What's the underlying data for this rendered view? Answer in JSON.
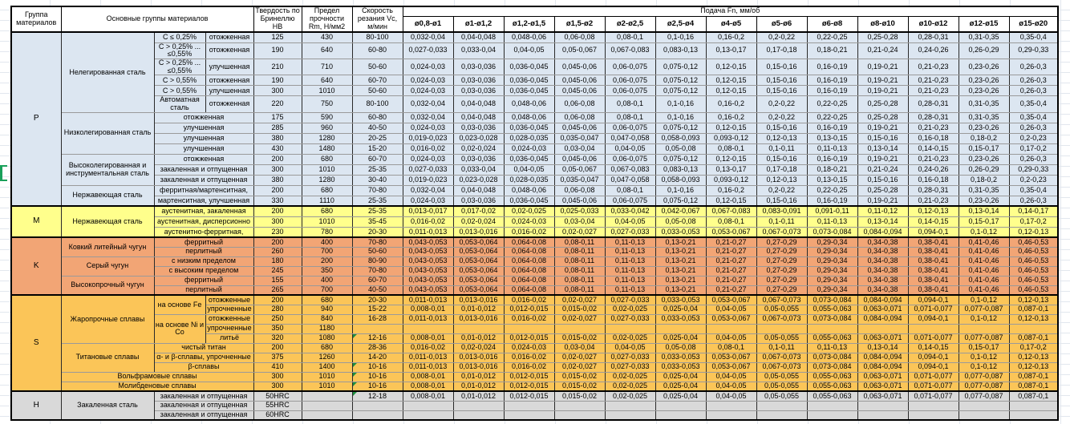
{
  "sheet": {
    "header": {
      "group_col": "Группа материалов",
      "main_col": "Основные группы материалов",
      "hardness_col": "Твердость по Бринеллю HB",
      "strength_col": "Предел прочности Rm, Н/мм2",
      "speed_col": "Скорость резания Vc, м/мин",
      "feed_title": "Подача Fn, мм/об",
      "diameters": [
        "ø0,8-ø1",
        "ø1-ø1,2",
        "ø1,2-ø1,5",
        "ø1,5-ø2",
        "ø2-ø2,5",
        "ø2,5-ø4",
        "ø4-ø5",
        "ø5-ø6",
        "ø6-ø8",
        "ø8-ø10",
        "ø10-ø12",
        "ø12-ø15",
        "ø15-ø20"
      ]
    },
    "feed_patterns": {
      "A": [
        "0,032-0,04",
        "0,04-0,048",
        "0,048-0,06",
        "0,06-0,08",
        "0,08-0,1",
        "0,1-0,16",
        "0,16-0,2",
        "0,2-0,22",
        "0,22-0,25",
        "0,25-0,28",
        "0,28-0,31",
        "0,31-0,35",
        "0,35-0,4"
      ],
      "B": [
        "0,027-0,033",
        "0,033-0,04",
        "0,04-0,05",
        "0,05-0,067",
        "0,067-0,083",
        "0,083-0,13",
        "0,13-0,17",
        "0,17-0,18",
        "0,18-0,21",
        "0,21-0,24",
        "0,24-0,26",
        "0,26-0,29",
        "0,29-0,33"
      ],
      "C": [
        "0,024-0,03",
        "0,03-0,036",
        "0,036-0,045",
        "0,045-0,06",
        "0,06-0,075",
        "0,075-0,12",
        "0,12-0,15",
        "0,15-0,16",
        "0,16-0,19",
        "0,19-0,21",
        "0,21-0,23",
        "0,23-0,26",
        "0,26-0,3"
      ],
      "D": [
        "0,019-0,023",
        "0,023-0,028",
        "0,028-0,035",
        "0,035-0,047",
        "0,047-0,058",
        "0,058-0,093",
        "0,093-0,12",
        "0,12-0,13",
        "0,13-0,15",
        "0,15-0,16",
        "0,16-0,18",
        "0,18-0,2",
        "0,2-0,23"
      ],
      "E": [
        "0,016-0,02",
        "0,02-0,024",
        "0,024-0,03",
        "0,03-0,04",
        "0,04-0,05",
        "0,05-0,08",
        "0,08-0,1",
        "0,1-0,11",
        "0,11-0,13",
        "0,13-0,14",
        "0,14-0,15",
        "0,15-0,17",
        "0,17-0,2"
      ],
      "F": [
        "0,013-0,017",
        "0,017-0,02",
        "0,02-0,025",
        "0,025-0,033",
        "0,033-0,042",
        "0,042-0,067",
        "0,067-0,083",
        "0,083-0,091",
        "0,091-0,11",
        "0,11-0,12",
        "0,12-0,13",
        "0,13-0,14",
        "0,14-0,17"
      ],
      "G": [
        "0,011-0,013",
        "0,013-0,016",
        "0,016-0,02",
        "0,02-0,027",
        "0,027-0,033",
        "0,033-0,053",
        "0,053-0,067",
        "0,067-0,073",
        "0,073-0,084",
        "0,084-0,094",
        "0,094-0,1",
        "0,1-0,12",
        "0,12-0,13"
      ],
      "H": [
        "0,008-0,01",
        "0,01-0,012",
        "0,012-0,015",
        "0,015-0,02",
        "0,02-0,025",
        "0,025-0,04",
        "0,04-0,05",
        "0,05-0,055",
        "0,055-0,063",
        "0,063-0,071",
        "0,071-0,077",
        "0,077-0,087",
        "0,087-0,1"
      ],
      "K": [
        "0,043-0,053",
        "0,053-0,064",
        "0,064-0,08",
        "0,08-0,11",
        "0,11-0,13",
        "0,13-0,21",
        "0,21-0,27",
        "0,27-0,29",
        "0,29-0,34",
        "0,34-0,38",
        "0,38-0,41",
        "0,41-0,46",
        "0,46-0,53"
      ]
    },
    "groups": [
      {
        "letter": "P",
        "color": "#dce6f1",
        "blocks": [
          {
            "material": "Нелегированная сталь",
            "subblocks": [
              {
                "label": "C ≤ 0,25%",
                "rows": [
                  {
                    "state": "отожженная",
                    "hb": "125",
                    "rm": "430",
                    "vc": "80-100",
                    "feeds": "A"
                  }
                ]
              },
              {
                "label": "C > 0,25% ... ≤0,55%",
                "rows": [
                  {
                    "state": "отожженная",
                    "hb": "190",
                    "rm": "640",
                    "vc": "60-80",
                    "feeds": "B",
                    "tall": true
                  }
                ]
              },
              {
                "label": "C > 0,25% ... ≤0,55%",
                "rows": [
                  {
                    "state": "улучшенная",
                    "hb": "210",
                    "rm": "710",
                    "vc": "50-60",
                    "feeds": "C",
                    "tall": true
                  }
                ]
              },
              {
                "label": "C > 0,55%",
                "rows": [
                  {
                    "state": "отожженная",
                    "hb": "190",
                    "rm": "640",
                    "vc": "60-70",
                    "feeds": "C"
                  }
                ]
              },
              {
                "label": "C > 0,55%",
                "rows": [
                  {
                    "state": "улучшенная",
                    "hb": "300",
                    "rm": "1010",
                    "vc": "50-60",
                    "feeds": "C"
                  }
                ]
              },
              {
                "label": "Автоматная сталь",
                "rows": [
                  {
                    "state": "отожженная",
                    "hb": "220",
                    "rm": "750",
                    "vc": "80-100",
                    "feeds": "A",
                    "tall": true
                  }
                ]
              }
            ]
          },
          {
            "material": "Низколегированная сталь",
            "subblocks": [
              {
                "label": null,
                "rows": [
                  {
                    "state": "отожженная",
                    "hb": "175",
                    "rm": "590",
                    "vc": "60-80",
                    "feeds": "A"
                  },
                  {
                    "state": "улучшенная",
                    "hb": "285",
                    "rm": "960",
                    "vc": "40-50",
                    "feeds": "C"
                  },
                  {
                    "state": "улучшенная",
                    "hb": "380",
                    "rm": "1280",
                    "vc": "20-25",
                    "feeds": "D"
                  },
                  {
                    "state": "улучшенная",
                    "hb": "430",
                    "rm": "1480",
                    "vc": "15-20",
                    "feeds": "E"
                  }
                ]
              }
            ]
          },
          {
            "material": "Высоколегированная и инструментальная сталь",
            "subblocks": [
              {
                "label": null,
                "rows": [
                  {
                    "state": "отожженная",
                    "hb": "200",
                    "rm": "680",
                    "vc": "60-70",
                    "feeds": "C"
                  },
                  {
                    "state": "закаленная и отпущенная",
                    "hb": "300",
                    "rm": "1010",
                    "vc": "25-35",
                    "feeds": "B"
                  },
                  {
                    "state": "закаленная и отпущенная",
                    "hb": "380",
                    "rm": "1280",
                    "vc": "30-40",
                    "feeds": "D"
                  }
                ]
              }
            ]
          },
          {
            "material": "Нержавеющая сталь",
            "subblocks": [
              {
                "label": null,
                "rows": [
                  {
                    "state": "ферритная/мартенситная,",
                    "hb": "200",
                    "rm": "680",
                    "vc": "70-80",
                    "feeds": "A"
                  },
                  {
                    "state": "мартенситная, улучшенная",
                    "hb": "330",
                    "rm": "1110",
                    "vc": "25-35",
                    "feeds": "C"
                  }
                ]
              }
            ]
          }
        ]
      },
      {
        "letter": "M",
        "color": "#ffff8c",
        "blocks": [
          {
            "material": "Нержавеющая сталь",
            "subblocks": [
              {
                "label": null,
                "rows": [
                  {
                    "state": "аустенитная, закаленная",
                    "hb": "200",
                    "rm": "680",
                    "vc": "25-35",
                    "feeds": "F"
                  },
                  {
                    "state": "аустенитная, дисперсионно",
                    "hb": "300",
                    "rm": "1010",
                    "vc": "35-45",
                    "feeds": "E"
                  },
                  {
                    "state": "аустенитно-ферритная,",
                    "hb": "230",
                    "rm": "780",
                    "vc": "20-30",
                    "feeds": "G"
                  }
                ]
              }
            ]
          }
        ]
      },
      {
        "letter": "K",
        "color": "#f2a575",
        "blocks": [
          {
            "material": "Ковкий литейный чугун",
            "subblocks": [
              {
                "label": null,
                "rows": [
                  {
                    "state": "ферритный",
                    "hb": "200",
                    "rm": "400",
                    "vc": "70-80",
                    "feeds": "K"
                  },
                  {
                    "state": "перлитный",
                    "hb": "260",
                    "rm": "700",
                    "vc": "50-60",
                    "feeds": "K"
                  }
                ]
              }
            ]
          },
          {
            "material": "Серый чугун",
            "subblocks": [
              {
                "label": null,
                "rows": [
                  {
                    "state": "с низким пределом",
                    "hb": "180",
                    "rm": "200",
                    "vc": "80-90",
                    "feeds": "K"
                  },
                  {
                    "state": "с высоким пределом",
                    "hb": "245",
                    "rm": "350",
                    "vc": "70-80",
                    "feeds": "K"
                  }
                ]
              }
            ]
          },
          {
            "material": "Высокопрочный чугун",
            "subblocks": [
              {
                "label": null,
                "rows": [
                  {
                    "state": "ферритный",
                    "hb": "155",
                    "rm": "400",
                    "vc": "60-70",
                    "feeds": "K"
                  },
                  {
                    "state": "перлитный",
                    "hb": "265",
                    "rm": "700",
                    "vc": "40-50",
                    "feeds": "K"
                  }
                ]
              }
            ]
          }
        ]
      },
      {
        "letter": "S",
        "color": "#fbc558",
        "blocks": [
          {
            "material": "Жаропрочные сплавы",
            "subblocks": [
              {
                "label": "на основе Fe",
                "rows": [
                  {
                    "state": "отожженные",
                    "hb": "200",
                    "rm": "680",
                    "vc": "20-30",
                    "feeds": "G"
                  },
                  {
                    "state": "упрочненные",
                    "hb": "280",
                    "rm": "940",
                    "vc": "15-22",
                    "feeds": "H"
                  }
                ]
              },
              {
                "label": "на основе Ni и Co",
                "rows": [
                  {
                    "state": "отожженные",
                    "hb": "250",
                    "rm": "840",
                    "vc": "16-28",
                    "feeds": "G"
                  },
                  {
                    "state": "упрочненные",
                    "hb": "350",
                    "rm": "1180",
                    "vc": "",
                    "feeds": null
                  },
                  {
                    "state": "литьё",
                    "hb": "320",
                    "rm": "1080",
                    "vc": "12-16",
                    "feeds": "H",
                    "mark": true
                  }
                ]
              }
            ]
          },
          {
            "material": "Титановые сплавы",
            "subblocks": [
              {
                "label": null,
                "rows": [
                  {
                    "state": "чистый титан",
                    "hb": "200",
                    "rm": "680",
                    "vc": "28-36",
                    "feeds": "E"
                  },
                  {
                    "state": "α- и β-сплавы, упрочненные",
                    "hb": "375",
                    "rm": "1260",
                    "vc": "14-20",
                    "feeds": "G"
                  },
                  {
                    "state": "β-сплавы",
                    "hb": "410",
                    "rm": "1400",
                    "vc": "10-16",
                    "feeds": "G",
                    "mark": true
                  }
                ]
              }
            ]
          },
          {
            "material": "Вольфрамовые сплавы",
            "wide": true,
            "subblocks": [
              {
                "label": null,
                "rows": [
                  {
                    "state": null,
                    "hb": "300",
                    "rm": "1010",
                    "vc": "10-16",
                    "feeds": "H",
                    "mark": true
                  }
                ]
              }
            ]
          },
          {
            "material": "Молибденовые сплавы",
            "wide": true,
            "subblocks": [
              {
                "label": null,
                "rows": [
                  {
                    "state": null,
                    "hb": "300",
                    "rm": "1010",
                    "vc": "10-16",
                    "feeds": "H",
                    "mark": true
                  }
                ]
              }
            ]
          }
        ]
      },
      {
        "letter": "H",
        "color": "#d9d9d9",
        "blocks": [
          {
            "material": "Закаленная сталь",
            "subblocks": [
              {
                "label": null,
                "rows": [
                  {
                    "state": "закаленная и отпущенная",
                    "hb": "50HRC",
                    "rm": "",
                    "vc": "12-18",
                    "feeds": "H",
                    "mark": true
                  },
                  {
                    "state": "закаленная и отпущенная",
                    "hb": "55HRC",
                    "rm": "",
                    "vc": "",
                    "feeds": null
                  },
                  {
                    "state": "закаленная и отпущенная",
                    "hb": "60HRC",
                    "rm": "",
                    "vc": "",
                    "feeds": null
                  }
                ]
              }
            ]
          }
        ]
      }
    ]
  },
  "colors": {
    "group_p_fill": "#dce6f1",
    "group_m_fill": "#ffff8c",
    "group_k_fill": "#f2a575",
    "group_s_fill": "#fbc558",
    "group_h_fill": "#d9d9d9",
    "error_marker_green": "#1e8f3e",
    "selection_green": "#19a05a"
  }
}
